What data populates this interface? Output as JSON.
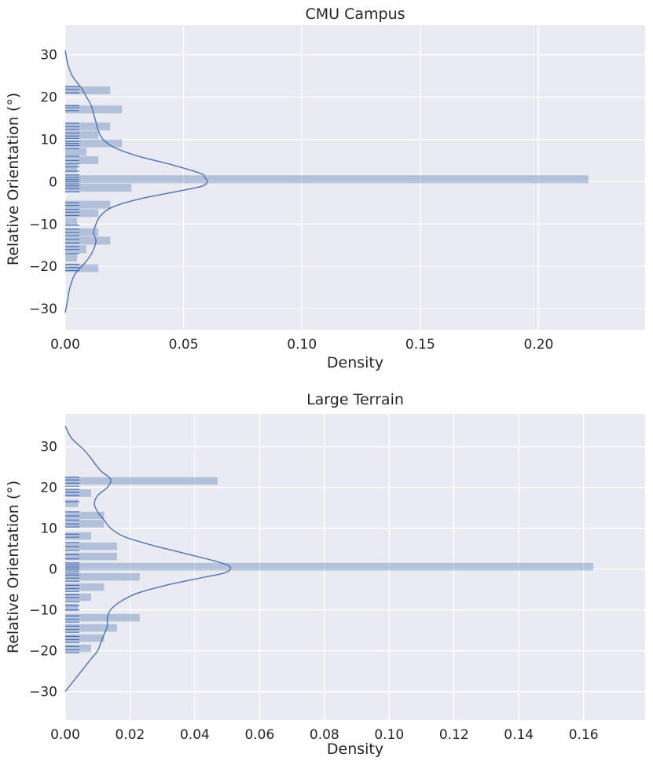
{
  "chart_data": [
    {
      "type": "histogram",
      "orientation": "horizontal",
      "title": "CMU Campus",
      "xlabel": "Density",
      "ylabel": "Relative Orientation (°)",
      "xlim": [
        0,
        0.245
      ],
      "ylim": [
        -35,
        37
      ],
      "x_ticks": [
        0.0,
        0.05,
        0.1,
        0.15,
        0.2
      ],
      "x_tick_labels": [
        "0.00",
        "0.05",
        "0.10",
        "0.15",
        "0.20"
      ],
      "y_ticks": [
        30,
        20,
        10,
        0,
        -10,
        -20,
        -30
      ],
      "y_tick_labels": [
        "30",
        "20",
        "10",
        "0",
        "−10",
        "−20",
        "−30"
      ],
      "bin_width": 2.0,
      "bins": [
        {
          "center": 21.5,
          "value": 0.019
        },
        {
          "center": 17.0,
          "value": 0.024
        },
        {
          "center": 13.0,
          "value": 0.019
        },
        {
          "center": 11.0,
          "value": 0.014
        },
        {
          "center": 9.0,
          "value": 0.024
        },
        {
          "center": 7.0,
          "value": 0.009
        },
        {
          "center": 5.0,
          "value": 0.014
        },
        {
          "center": 3.0,
          "value": 0.005
        },
        {
          "center": 0.5,
          "value": 0.221
        },
        {
          "center": -1.5,
          "value": 0.028
        },
        {
          "center": -5.5,
          "value": 0.019
        },
        {
          "center": -7.5,
          "value": 0.014
        },
        {
          "center": -9.5,
          "value": 0.005
        },
        {
          "center": -12.0,
          "value": 0.014
        },
        {
          "center": -14.0,
          "value": 0.019
        },
        {
          "center": -16.0,
          "value": 0.009
        },
        {
          "center": -18.0,
          "value": 0.005
        },
        {
          "center": -20.5,
          "value": 0.014
        }
      ],
      "rug_y": [
        22.5,
        21.8,
        21.0,
        18.0,
        17.5,
        16.8,
        13.8,
        13.0,
        12.3,
        11.5,
        10.8,
        10.2,
        9.5,
        9.0,
        8.5,
        7.8,
        6.0,
        5.0,
        4.2,
        3.5,
        2.5,
        1.6,
        1.0,
        0.5,
        0.0,
        -0.5,
        -1.0,
        -1.6,
        -2.4,
        -5.0,
        -5.6,
        -6.5,
        -7.2,
        -8.0,
        -10.3,
        -11.2,
        -12.0,
        -12.8,
        -13.6,
        -14.5,
        -15.3,
        -16.0,
        -17.0,
        -19.5,
        -20.3,
        -21.0
      ],
      "kde": {
        "y": [
          31,
          28,
          25,
          22,
          20,
          18,
          16,
          14,
          12,
          10,
          8,
          6,
          4,
          2,
          1,
          0,
          -1,
          -2,
          -4,
          -6,
          -8,
          -10,
          -12,
          -14,
          -16,
          -18,
          -20,
          -22,
          -25,
          -28,
          -31
        ],
        "density": [
          0.0,
          0.001,
          0.003,
          0.007,
          0.009,
          0.011,
          0.012,
          0.013,
          0.014,
          0.016,
          0.021,
          0.031,
          0.045,
          0.057,
          0.059,
          0.06,
          0.058,
          0.05,
          0.032,
          0.02,
          0.015,
          0.013,
          0.012,
          0.013,
          0.012,
          0.01,
          0.007,
          0.004,
          0.002,
          0.001,
          0.0
        ]
      }
    },
    {
      "type": "histogram",
      "orientation": "horizontal",
      "title": "Large Terrain",
      "xlabel": "Density",
      "ylabel": "Relative Orientation (°)",
      "xlim": [
        0,
        0.179
      ],
      "ylim": [
        -37,
        38
      ],
      "x_ticks": [
        0.0,
        0.02,
        0.04,
        0.06,
        0.08,
        0.1,
        0.12,
        0.14,
        0.16
      ],
      "x_tick_labels": [
        "0.00",
        "0.02",
        "0.04",
        "0.06",
        "0.08",
        "0.10",
        "0.12",
        "0.14",
        "0.16"
      ],
      "y_ticks": [
        30,
        20,
        10,
        0,
        -10,
        -20,
        -30
      ],
      "y_tick_labels": [
        "30",
        "20",
        "10",
        "0",
        "−10",
        "−20",
        "−30"
      ],
      "bin_width": 2.0,
      "bins": [
        {
          "center": 21.5,
          "value": 0.047
        },
        {
          "center": 18.5,
          "value": 0.008
        },
        {
          "center": 16.0,
          "value": 0.004
        },
        {
          "center": 13.0,
          "value": 0.012
        },
        {
          "center": 11.0,
          "value": 0.012
        },
        {
          "center": 8.0,
          "value": 0.008
        },
        {
          "center": 5.5,
          "value": 0.016
        },
        {
          "center": 3.0,
          "value": 0.016
        },
        {
          "center": 0.5,
          "value": 0.163
        },
        {
          "center": -2.0,
          "value": 0.023
        },
        {
          "center": -4.5,
          "value": 0.012
        },
        {
          "center": -7.0,
          "value": 0.008
        },
        {
          "center": -9.5,
          "value": 0.004
        },
        {
          "center": -12.0,
          "value": 0.023
        },
        {
          "center": -14.5,
          "value": 0.016
        },
        {
          "center": -17.0,
          "value": 0.012
        },
        {
          "center": -19.5,
          "value": 0.008
        }
      ],
      "rug_y": [
        22.5,
        21.8,
        21.0,
        20.3,
        19.5,
        18.8,
        18.0,
        16.5,
        14.0,
        13.0,
        12.0,
        11.0,
        10.3,
        8.5,
        7.8,
        6.5,
        5.5,
        4.5,
        3.5,
        2.5,
        1.5,
        1.0,
        0.5,
        0.0,
        -0.5,
        -1.0,
        -1.5,
        -2.2,
        -3.0,
        -4.0,
        -4.8,
        -5.5,
        -6.3,
        -7.0,
        -8.0,
        -9.0,
        -10.0,
        -11.5,
        -12.3,
        -13.0,
        -14.0,
        -14.8,
        -15.5,
        -16.5,
        -17.3,
        -18.0,
        -19.0,
        -19.8,
        -20.5
      ],
      "kde": {
        "y": [
          35,
          32,
          29,
          26,
          24,
          22,
          20,
          18,
          16,
          14,
          12,
          10,
          8,
          6,
          4,
          2,
          1,
          0,
          -1,
          -2,
          -4,
          -6,
          -8,
          -10,
          -12,
          -14,
          -16,
          -18,
          -20,
          -22,
          -24,
          -27,
          -30
        ],
        "density": [
          0.0,
          0.002,
          0.006,
          0.009,
          0.011,
          0.014,
          0.013,
          0.01,
          0.009,
          0.01,
          0.012,
          0.014,
          0.018,
          0.026,
          0.036,
          0.046,
          0.05,
          0.051,
          0.049,
          0.043,
          0.031,
          0.022,
          0.017,
          0.014,
          0.013,
          0.013,
          0.012,
          0.011,
          0.01,
          0.008,
          0.006,
          0.003,
          0.0
        ]
      }
    }
  ]
}
